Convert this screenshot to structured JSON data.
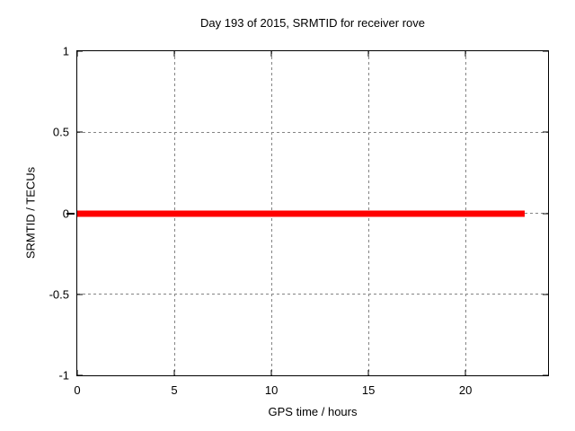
{
  "chart_data": {
    "type": "line",
    "title": "Day 193 of 2015, SRMTID for receiver rove",
    "xlabel": "GPS time / hours",
    "ylabel": "SRMTID / TECUs",
    "xlim": [
      0,
      24.25
    ],
    "ylim": [
      -1,
      1
    ],
    "xticks": [
      0,
      5,
      10,
      15,
      20
    ],
    "xtick_labels": [
      "0",
      "5",
      "10",
      "15",
      "20"
    ],
    "yticks": [
      1,
      0.5,
      0,
      -0.5,
      -1
    ],
    "ytick_labels": [
      "1",
      "0.5",
      "0",
      "-0.5",
      "-1"
    ],
    "grid": true,
    "grid_style": "dashed",
    "grid_color": "#848484",
    "border_color": "#000000",
    "background_color": "#ffffff",
    "legend": "none",
    "series": [
      {
        "name": "SRMTID",
        "color": "#ff0000",
        "x": [
          0,
          23.05
        ],
        "y": [
          0,
          0
        ]
      }
    ]
  }
}
